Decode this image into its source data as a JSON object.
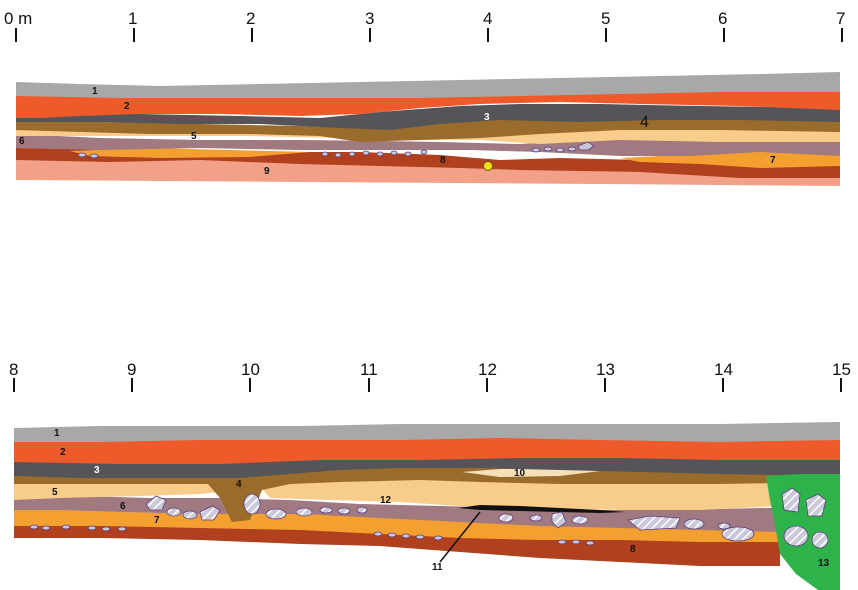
{
  "section_1": {
    "scale_labels": [
      "0 m",
      "1",
      "2",
      "3",
      "4",
      "5",
      "6",
      "7"
    ],
    "layer_labels": [
      "1",
      "2",
      "3",
      "4",
      "5",
      "6",
      "7",
      "8",
      "9"
    ]
  },
  "section_2": {
    "scale_labels": [
      "8",
      "9",
      "10",
      "11",
      "12",
      "13",
      "14",
      "15"
    ],
    "layer_labels": [
      "1",
      "2",
      "3",
      "4",
      "5",
      "6",
      "7",
      "12",
      "10",
      "11",
      "8",
      "13"
    ]
  },
  "colors": {
    "layer_1": "#a8a8a8",
    "layer_2": "#ee5a2a",
    "layer_3": "#555559",
    "layer_4": "#9a6c2c",
    "layer_5": "#f8cc8a",
    "layer_6": "#a07a80",
    "layer_7": "#f4a030",
    "layer_8": "#b0401e",
    "layer_9": "#f2a088",
    "layer_10": "#f6e0b8",
    "layer_11": "#111111",
    "layer_12": "#f8cc8a",
    "layer_13": "#2db34a",
    "stone_fill": "#c8c8d8",
    "find_marker": "#f2e020"
  }
}
